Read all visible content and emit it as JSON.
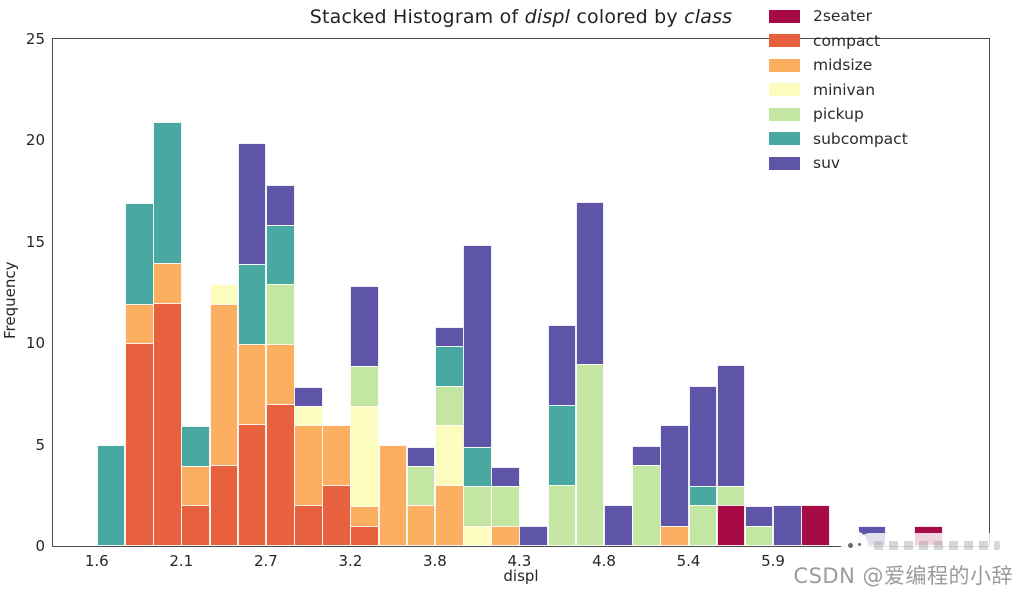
{
  "watermark": {
    "text": "CSDN @爱编程的小辞",
    "color": "#9b9b9b"
  },
  "chart_data": {
    "type": "bar",
    "subtype": "stacked-histogram",
    "title_plain": "Stacked Histogram of displ colored by class",
    "title_parts": [
      {
        "text": "Stacked Histogram of ",
        "italic": false
      },
      {
        "text": "displ",
        "italic": true
      },
      {
        "text": " colored by ",
        "italic": false
      },
      {
        "text": "class",
        "italic": true
      }
    ],
    "xlabel": "displ",
    "ylabel": "Frequency",
    "ylim": [
      0,
      25
    ],
    "yticks": [
      0,
      5,
      10,
      15,
      20,
      25
    ],
    "xlim": [
      1.32,
      7.3
    ],
    "bin_start": 1.6,
    "bin_width": 0.18,
    "n_bins": 30,
    "grid": false,
    "legend_position": "upper right",
    "xticks": [
      {
        "label": "1.6",
        "edge": 0
      },
      {
        "label": "2.1",
        "edge": 3
      },
      {
        "label": "2.7",
        "edge": 6
      },
      {
        "label": "3.2",
        "edge": 9
      },
      {
        "label": "3.8",
        "edge": 12
      },
      {
        "label": "4.3",
        "edge": 15
      },
      {
        "label": "4.8",
        "edge": 18
      },
      {
        "label": "5.4",
        "edge": 21
      },
      {
        "label": "5.9",
        "edge": 24
      }
    ],
    "classes": [
      {
        "name": "2seater",
        "color": "#a60b45"
      },
      {
        "name": "compact",
        "color": "#e8613f"
      },
      {
        "name": "midsize",
        "color": "#fcae61"
      },
      {
        "name": "minivan",
        "color": "#fbfcbd"
      },
      {
        "name": "pickup",
        "color": "#c3e6a2"
      },
      {
        "name": "subcompact",
        "color": "#4aa8a3"
      },
      {
        "name": "suv",
        "color": "#5e55a8"
      }
    ],
    "bins": [
      {
        "subcompact": 5
      },
      {
        "compact": 10,
        "midsize": 2,
        "subcompact": 5
      },
      {
        "compact": 12,
        "midsize": 2,
        "subcompact": 7
      },
      {
        "compact": 2,
        "midsize": 2,
        "subcompact": 2
      },
      {
        "compact": 4,
        "midsize": 8,
        "minivan": 1
      },
      {
        "compact": 6,
        "midsize": 4,
        "subcompact": 4,
        "suv": 6
      },
      {
        "compact": 7,
        "midsize": 3,
        "pickup": 3,
        "subcompact": 3,
        "suv": 2
      },
      {
        "compact": 2,
        "midsize": 4,
        "minivan": 1,
        "suv": 1
      },
      {
        "compact": 3,
        "midsize": 3
      },
      {
        "compact": 1,
        "midsize": 1,
        "minivan": 5,
        "pickup": 2,
        "suv": 4
      },
      {
        "midsize": 5
      },
      {
        "midsize": 2,
        "pickup": 2,
        "suv": 1
      },
      {
        "midsize": 3,
        "minivan": 3,
        "pickup": 2,
        "subcompact": 2,
        "suv": 1
      },
      {
        "minivan": 1,
        "pickup": 2,
        "subcompact": 2,
        "suv": 10
      },
      {
        "midsize": 1,
        "pickup": 2,
        "suv": 1
      },
      {
        "suv": 1
      },
      {
        "pickup": 3,
        "subcompact": 4,
        "suv": 4
      },
      {
        "pickup": 9,
        "suv": 8
      },
      {
        "suv": 2
      },
      {
        "pickup": 4,
        "suv": 1
      },
      {
        "midsize": 1,
        "suv": 5
      },
      {
        "pickup": 2,
        "subcompact": 1,
        "suv": 5
      },
      {
        "2seater": 2,
        "pickup": 1,
        "suv": 6
      },
      {
        "pickup": 1,
        "suv": 1
      },
      {
        "suv": 2
      },
      {
        "2seater": 2
      },
      {},
      {
        "suv": 1
      },
      {},
      {
        "2seater": 1
      }
    ]
  }
}
